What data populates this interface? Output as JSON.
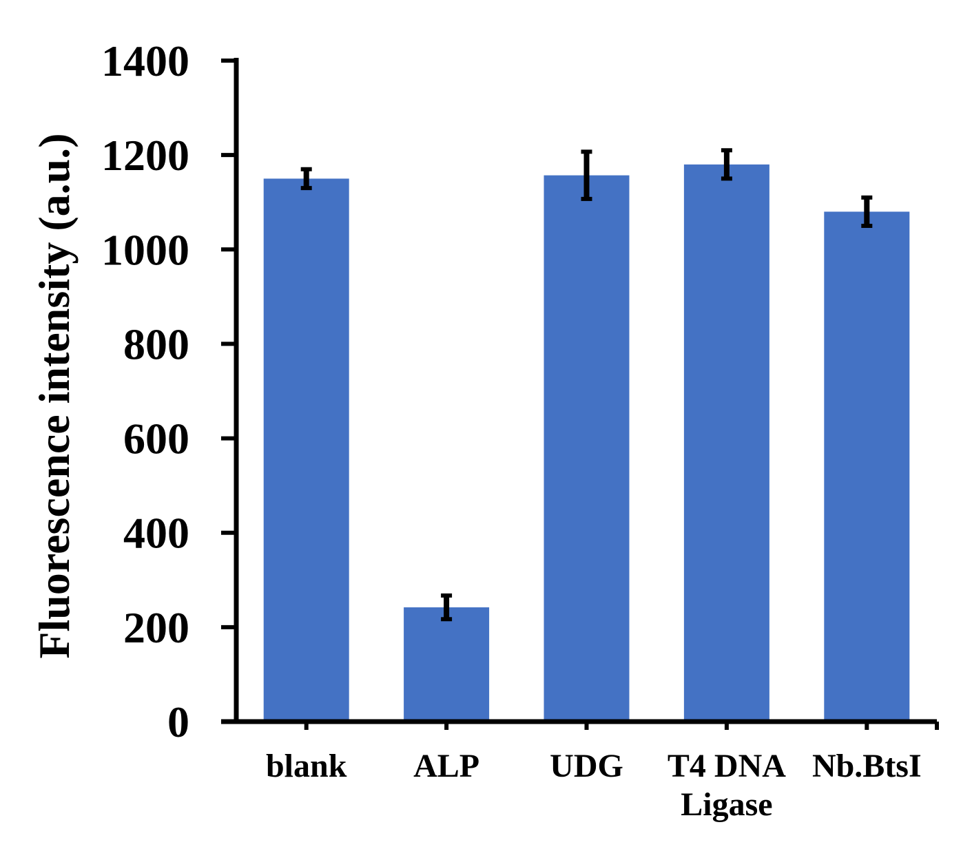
{
  "chart_data": {
    "type": "bar",
    "title": "",
    "xlabel": "",
    "ylabel": "Fluorescence intensity (a.u.)",
    "ylim": [
      0,
      1400
    ],
    "yticks": [
      0,
      200,
      400,
      600,
      800,
      1000,
      1200,
      1400
    ],
    "grid": false,
    "legend": "none",
    "categories": [
      {
        "lines": [
          "blank"
        ]
      },
      {
        "lines": [
          "ALP"
        ]
      },
      {
        "lines": [
          "UDG"
        ]
      },
      {
        "lines": [
          "T4 DNA",
          "Ligase"
        ]
      },
      {
        "lines": [
          "Nb.BtsI"
        ]
      }
    ],
    "series": [
      {
        "values": [
          1150,
          242,
          1157,
          1180,
          1080
        ],
        "errors": [
          20,
          25,
          50,
          30,
          30
        ],
        "color": "#4472C4"
      }
    ],
    "axis_color": "#000000",
    "error_bar_color": "#000000"
  }
}
